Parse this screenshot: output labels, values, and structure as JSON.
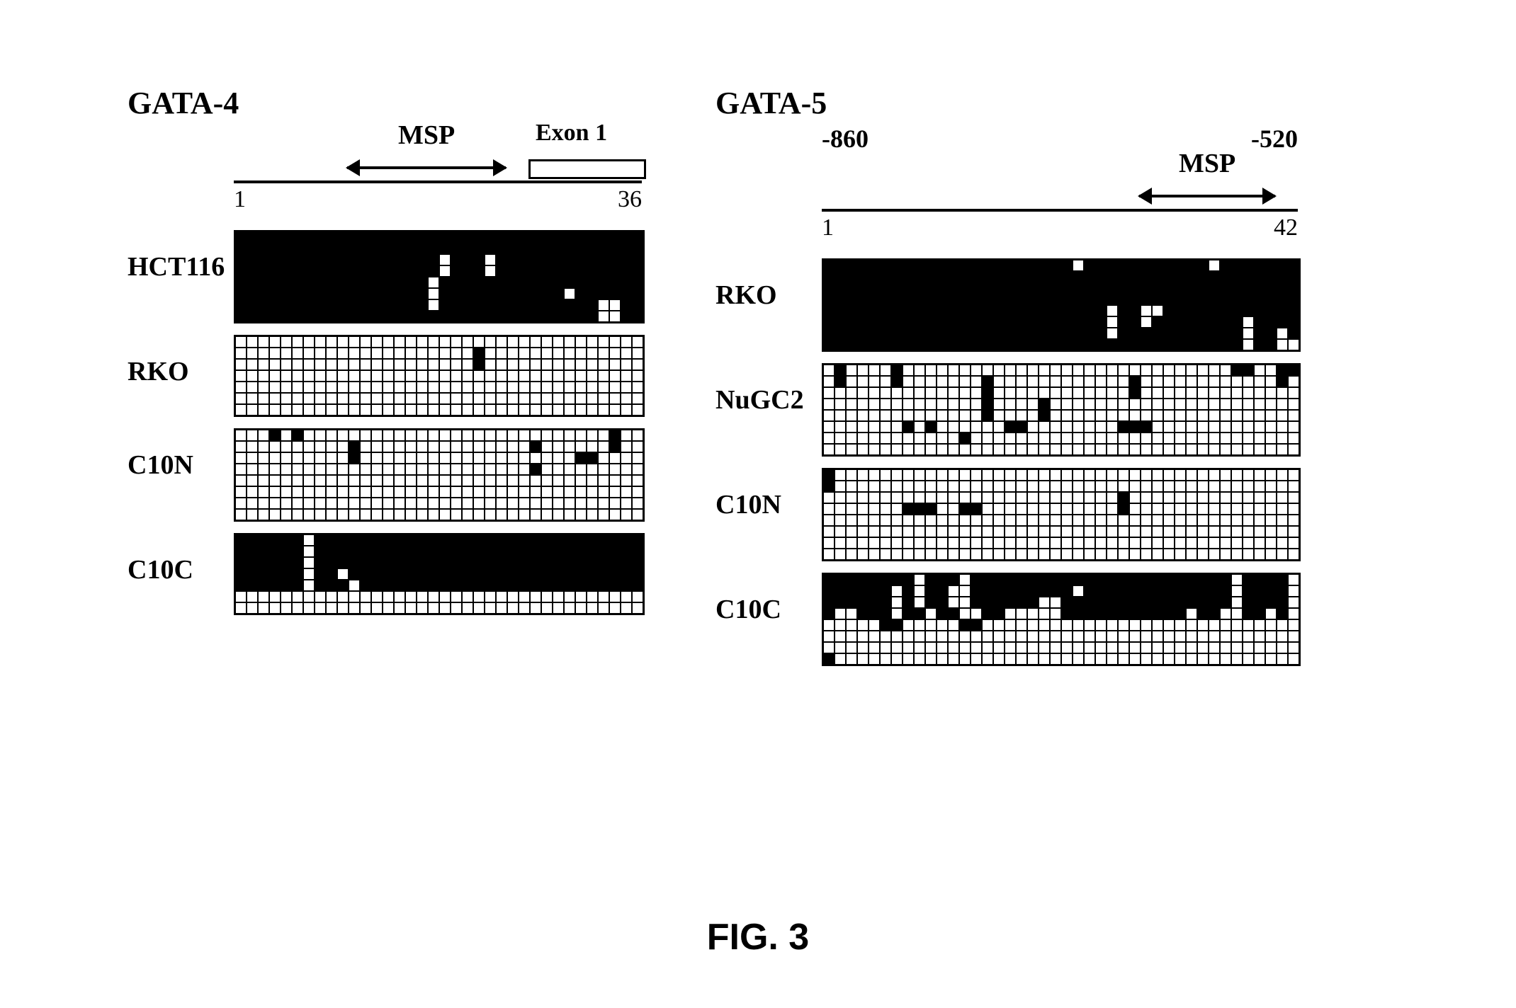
{
  "caption": "FIG. 3",
  "colors": {
    "methylated": "#000000",
    "unmethylated": "#ffffff",
    "grid_line": "#000000",
    "bg": "#ffffff"
  },
  "cell_size": 16,
  "panels": [
    {
      "title": "GATA-4",
      "cols": 36,
      "axis": {
        "start": "1",
        "end": "36"
      },
      "msp_label": "MSP",
      "msp_span": [
        10,
        24
      ],
      "exon_label": "Exon 1",
      "exon_span": [
        26,
        36
      ],
      "show_coords": false,
      "heatmaps": [
        {
          "label": "HCT116",
          "rows": 8,
          "base": "methylated",
          "flips": [
            [
              2,
              18
            ],
            [
              3,
              18
            ],
            [
              2,
              22
            ],
            [
              3,
              22
            ],
            [
              4,
              17
            ],
            [
              5,
              17
            ],
            [
              6,
              17
            ],
            [
              5,
              29
            ],
            [
              6,
              32
            ],
            [
              7,
              32
            ],
            [
              6,
              33
            ],
            [
              7,
              33
            ]
          ]
        },
        {
          "label": "RKO",
          "rows": 7,
          "base": "unmethylated",
          "flips": [
            [
              1,
              21
            ],
            [
              2,
              21
            ]
          ]
        },
        {
          "label": "C10N",
          "rows": 8,
          "base": "unmethylated",
          "flips": [
            [
              0,
              3
            ],
            [
              0,
              5
            ],
            [
              1,
              10
            ],
            [
              2,
              10
            ],
            [
              1,
              26
            ],
            [
              3,
              26
            ],
            [
              2,
              30
            ],
            [
              2,
              31
            ],
            [
              0,
              33
            ],
            [
              1,
              33
            ]
          ]
        },
        {
          "label": "C10C",
          "rows": 7,
          "base": "unmethylated",
          "full_methyl_rows": [
            0,
            1,
            2,
            3,
            4
          ],
          "flips": [
            [
              0,
              6
            ],
            [
              1,
              6
            ],
            [
              2,
              6
            ],
            [
              3,
              6
            ],
            [
              4,
              6
            ],
            [
              3,
              9
            ],
            [
              4,
              10
            ]
          ]
        }
      ]
    },
    {
      "title": "GATA-5",
      "cols": 42,
      "axis": {
        "start": "1",
        "end": "42"
      },
      "msp_label": "MSP",
      "msp_span": [
        28,
        40
      ],
      "show_coords": true,
      "coord_left": "-860",
      "coord_right": "-520",
      "heatmaps": [
        {
          "label": "RKO",
          "rows": 8,
          "base": "methylated",
          "flips": [
            [
              0,
              22
            ],
            [
              0,
              34
            ],
            [
              4,
              25
            ],
            [
              5,
              25
            ],
            [
              6,
              25
            ],
            [
              4,
              28
            ],
            [
              5,
              28
            ],
            [
              4,
              29
            ],
            [
              5,
              37
            ],
            [
              6,
              37
            ],
            [
              7,
              37
            ],
            [
              7,
              40
            ],
            [
              6,
              40
            ],
            [
              7,
              41
            ]
          ]
        },
        {
          "label": "NuGC2",
          "rows": 8,
          "base": "unmethylated",
          "flips": [
            [
              0,
              1
            ],
            [
              1,
              1
            ],
            [
              0,
              6
            ],
            [
              1,
              6
            ],
            [
              1,
              14
            ],
            [
              2,
              14
            ],
            [
              3,
              14
            ],
            [
              4,
              14
            ],
            [
              1,
              27
            ],
            [
              2,
              27
            ],
            [
              0,
              36
            ],
            [
              0,
              37
            ],
            [
              5,
              7
            ],
            [
              5,
              9
            ],
            [
              6,
              12
            ],
            [
              5,
              16
            ],
            [
              5,
              17
            ],
            [
              3,
              19
            ],
            [
              4,
              19
            ],
            [
              5,
              26
            ],
            [
              5,
              27
            ],
            [
              5,
              28
            ],
            [
              0,
              40
            ],
            [
              0,
              41
            ],
            [
              1,
              40
            ]
          ]
        },
        {
          "label": "C10N",
          "rows": 8,
          "base": "unmethylated",
          "flips": [
            [
              0,
              0
            ],
            [
              1,
              0
            ],
            [
              3,
              7
            ],
            [
              3,
              8
            ],
            [
              3,
              9
            ],
            [
              3,
              12
            ],
            [
              3,
              13
            ],
            [
              3,
              26
            ],
            [
              2,
              26
            ]
          ]
        },
        {
          "label": "C10C",
          "rows": 8,
          "base": "unmethylated",
          "flips": [
            [
              0,
              0
            ],
            [
              0,
              1
            ],
            [
              0,
              2
            ],
            [
              0,
              3
            ],
            [
              0,
              4
            ],
            [
              0,
              5
            ],
            [
              0,
              6
            ],
            [
              0,
              7
            ],
            [
              0,
              9
            ],
            [
              0,
              10
            ],
            [
              0,
              11
            ],
            [
              0,
              13
            ],
            [
              0,
              14
            ],
            [
              0,
              15
            ],
            [
              0,
              16
            ],
            [
              0,
              17
            ],
            [
              0,
              18
            ],
            [
              0,
              19
            ],
            [
              0,
              20
            ],
            [
              0,
              21
            ],
            [
              0,
              22
            ],
            [
              0,
              23
            ],
            [
              0,
              24
            ],
            [
              0,
              25
            ],
            [
              0,
              26
            ],
            [
              0,
              27
            ],
            [
              0,
              28
            ],
            [
              0,
              29
            ],
            [
              0,
              30
            ],
            [
              0,
              31
            ],
            [
              0,
              32
            ],
            [
              0,
              33
            ],
            [
              0,
              34
            ],
            [
              0,
              35
            ],
            [
              0,
              37
            ],
            [
              0,
              38
            ],
            [
              0,
              39
            ],
            [
              0,
              40
            ],
            [
              1,
              0
            ],
            [
              1,
              1
            ],
            [
              1,
              2
            ],
            [
              1,
              3
            ],
            [
              1,
              4
            ],
            [
              1,
              5
            ],
            [
              1,
              7
            ],
            [
              1,
              9
            ],
            [
              1,
              10
            ],
            [
              1,
              13
            ],
            [
              1,
              14
            ],
            [
              1,
              15
            ],
            [
              1,
              16
            ],
            [
              1,
              17
            ],
            [
              1,
              18
            ],
            [
              1,
              19
            ],
            [
              1,
              20
            ],
            [
              1,
              21
            ],
            [
              1,
              23
            ],
            [
              1,
              24
            ],
            [
              1,
              25
            ],
            [
              1,
              26
            ],
            [
              1,
              27
            ],
            [
              1,
              28
            ],
            [
              1,
              29
            ],
            [
              1,
              30
            ],
            [
              1,
              31
            ],
            [
              1,
              32
            ],
            [
              1,
              33
            ],
            [
              1,
              34
            ],
            [
              1,
              35
            ],
            [
              1,
              37
            ],
            [
              1,
              38
            ],
            [
              1,
              39
            ],
            [
              1,
              40
            ],
            [
              2,
              0
            ],
            [
              2,
              1
            ],
            [
              2,
              2
            ],
            [
              2,
              3
            ],
            [
              2,
              4
            ],
            [
              2,
              5
            ],
            [
              2,
              7
            ],
            [
              2,
              9
            ],
            [
              2,
              10
            ],
            [
              2,
              13
            ],
            [
              2,
              14
            ],
            [
              2,
              15
            ],
            [
              2,
              16
            ],
            [
              2,
              17
            ],
            [
              2,
              18
            ],
            [
              2,
              21
            ],
            [
              2,
              22
            ],
            [
              2,
              23
            ],
            [
              2,
              24
            ],
            [
              2,
              25
            ],
            [
              2,
              26
            ],
            [
              2,
              27
            ],
            [
              2,
              28
            ],
            [
              2,
              29
            ],
            [
              2,
              30
            ],
            [
              2,
              31
            ],
            [
              2,
              32
            ],
            [
              2,
              33
            ],
            [
              2,
              34
            ],
            [
              2,
              35
            ],
            [
              2,
              37
            ],
            [
              2,
              38
            ],
            [
              2,
              39
            ],
            [
              2,
              40
            ],
            [
              3,
              0
            ],
            [
              3,
              3
            ],
            [
              3,
              4
            ],
            [
              3,
              5
            ],
            [
              3,
              7
            ],
            [
              3,
              8
            ],
            [
              3,
              10
            ],
            [
              3,
              11
            ],
            [
              3,
              14
            ],
            [
              3,
              15
            ],
            [
              3,
              21
            ],
            [
              3,
              22
            ],
            [
              3,
              23
            ],
            [
              3,
              24
            ],
            [
              3,
              25
            ],
            [
              3,
              26
            ],
            [
              3,
              27
            ],
            [
              3,
              28
            ],
            [
              3,
              29
            ],
            [
              3,
              30
            ],
            [
              3,
              31
            ],
            [
              3,
              33
            ],
            [
              3,
              34
            ],
            [
              3,
              37
            ],
            [
              3,
              38
            ],
            [
              3,
              40
            ],
            [
              4,
              5
            ],
            [
              4,
              6
            ],
            [
              4,
              12
            ],
            [
              4,
              13
            ],
            [
              7,
              0
            ]
          ]
        }
      ]
    }
  ]
}
